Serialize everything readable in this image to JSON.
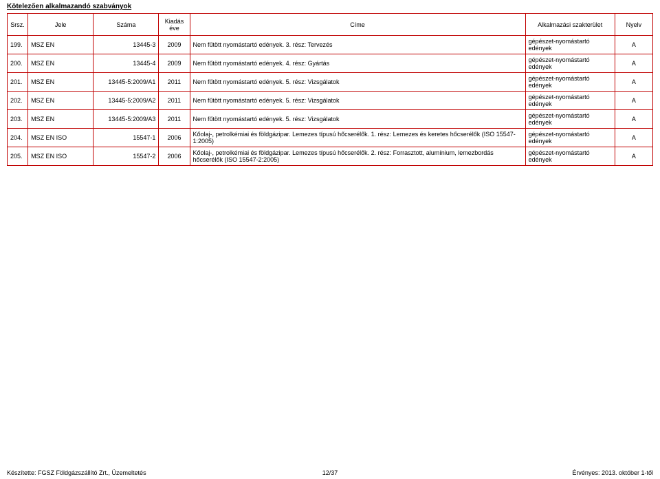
{
  "title": "Kötelezően alkalmazandó szabványok",
  "columns": {
    "srsz": "Srsz.",
    "jele": "Jele",
    "szama": "Száma",
    "ev": "Kiadás éve",
    "cime": "Címe",
    "szak": "Alkalmazási szakterület",
    "nyelv": "Nyelv"
  },
  "rows": [
    {
      "srsz": "199.",
      "jele": "MSZ EN",
      "szama": "13445-3",
      "ev": "2009",
      "cime": "Nem fűtött nyomástartó edények. 3. rész: Tervezés",
      "szak": "gépészet-nyomástartó edények",
      "nyelv": "A"
    },
    {
      "srsz": "200.",
      "jele": "MSZ EN",
      "szama": "13445-4",
      "ev": "2009",
      "cime": "Nem fűtött nyomástartó edények. 4. rész: Gyártás",
      "szak": "gépészet-nyomástartó edények",
      "nyelv": "A"
    },
    {
      "srsz": "201.",
      "jele": "MSZ EN",
      "szama": "13445-5:2009/A1",
      "ev": "2011",
      "cime": "Nem fűtött nyomástartó edények. 5. rész: Vizsgálatok",
      "szak": "gépészet-nyomástartó edények",
      "nyelv": "A"
    },
    {
      "srsz": "202.",
      "jele": "MSZ EN",
      "szama": "13445-5:2009/A2",
      "ev": "2011",
      "cime": "Nem fűtött nyomástartó edények. 5. rész: Vizsgálatok",
      "szak": "gépészet-nyomástartó edények",
      "nyelv": "A"
    },
    {
      "srsz": "203.",
      "jele": "MSZ EN",
      "szama": "13445-5:2009/A3",
      "ev": "2011",
      "cime": "Nem fűtött nyomástartó edények. 5. rész: Vizsgálatok",
      "szak": "gépészet-nyomástartó edények",
      "nyelv": "A"
    },
    {
      "srsz": "204.",
      "jele": "MSZ EN ISO",
      "szama": "15547-1",
      "ev": "2006",
      "cime": "Kőolaj-, petrolkémiai és földgázipar. Lemezes típusú hőcserélők. 1. rész: Lemezes és keretes hőcserélők (ISO 15547-1:2005)",
      "szak": "gépészet-nyomástartó edények",
      "nyelv": "A"
    },
    {
      "srsz": "205.",
      "jele": "MSZ EN ISO",
      "szama": "15547-2",
      "ev": "2006",
      "cime": "Kőolaj-, petrolkémiai és földgázipar. Lemezes típusú hőcserélők. 2. rész: Forrasztott, alumínium, lemezbordás hőcserélők (ISO 15547-2:2005)",
      "szak": "gépészet-nyomástartó edények",
      "nyelv": "A"
    }
  ],
  "footer": {
    "left": "Készítette: FGSZ Földgázszállító Zrt., Üzemeltetés",
    "mid": "12/37",
    "right": "Érvényes: 2013. október 1-től"
  },
  "style": {
    "border_color": "#c00000",
    "background_color": "#ffffff",
    "text_color": "#000000",
    "font_family": "Arial, sans-serif",
    "header_font_size": 9,
    "body_font_size": 9,
    "title_font_size": 10
  }
}
